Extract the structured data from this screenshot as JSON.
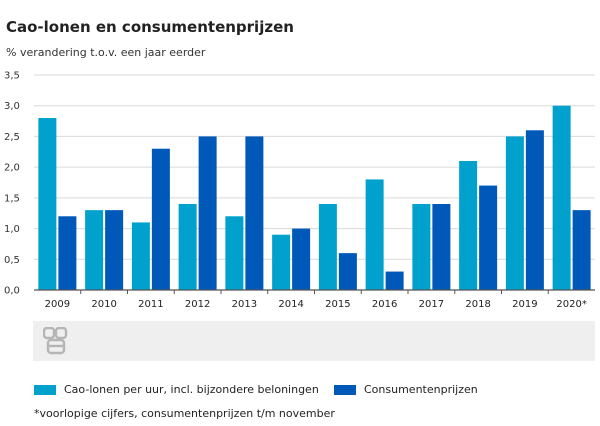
{
  "header": {
    "title": "Cao-lonen en consumentenprijzen",
    "subtitle": "% verandering t.o.v. een jaar eerder"
  },
  "colors": {
    "series1": "#00a1cd",
    "series2": "#0058b8",
    "grid": "#d9d9d9",
    "axis": "#555555"
  },
  "chart_data": {
    "type": "bar",
    "categories": [
      "2009",
      "2010",
      "2011",
      "2012",
      "2013",
      "2014",
      "2015",
      "2016",
      "2017",
      "2018",
      "2019",
      "2020*"
    ],
    "series": [
      {
        "name": "Cao-lonen per uur, incl. bijzondere beloningen",
        "values": [
          2.8,
          1.3,
          1.1,
          1.4,
          1.2,
          0.9,
          1.4,
          1.8,
          1.4,
          2.1,
          2.5,
          3.0
        ]
      },
      {
        "name": "Consumentenprijzen",
        "values": [
          1.2,
          1.3,
          2.3,
          2.5,
          2.5,
          1.0,
          0.6,
          0.3,
          1.4,
          1.7,
          2.6,
          1.3
        ]
      }
    ],
    "ylim": [
      0,
      3.5
    ],
    "yticks": [
      "0,0",
      "0,5",
      "1,0",
      "1,5",
      "2,0",
      "2,5",
      "3,0",
      "3,5"
    ],
    "grid": true,
    "legend": "bottom"
  },
  "footnote": "*voorlopige cijfers, consumentenprijzen t/m november",
  "logo": {
    "icon": "cbs-logo-icon"
  }
}
